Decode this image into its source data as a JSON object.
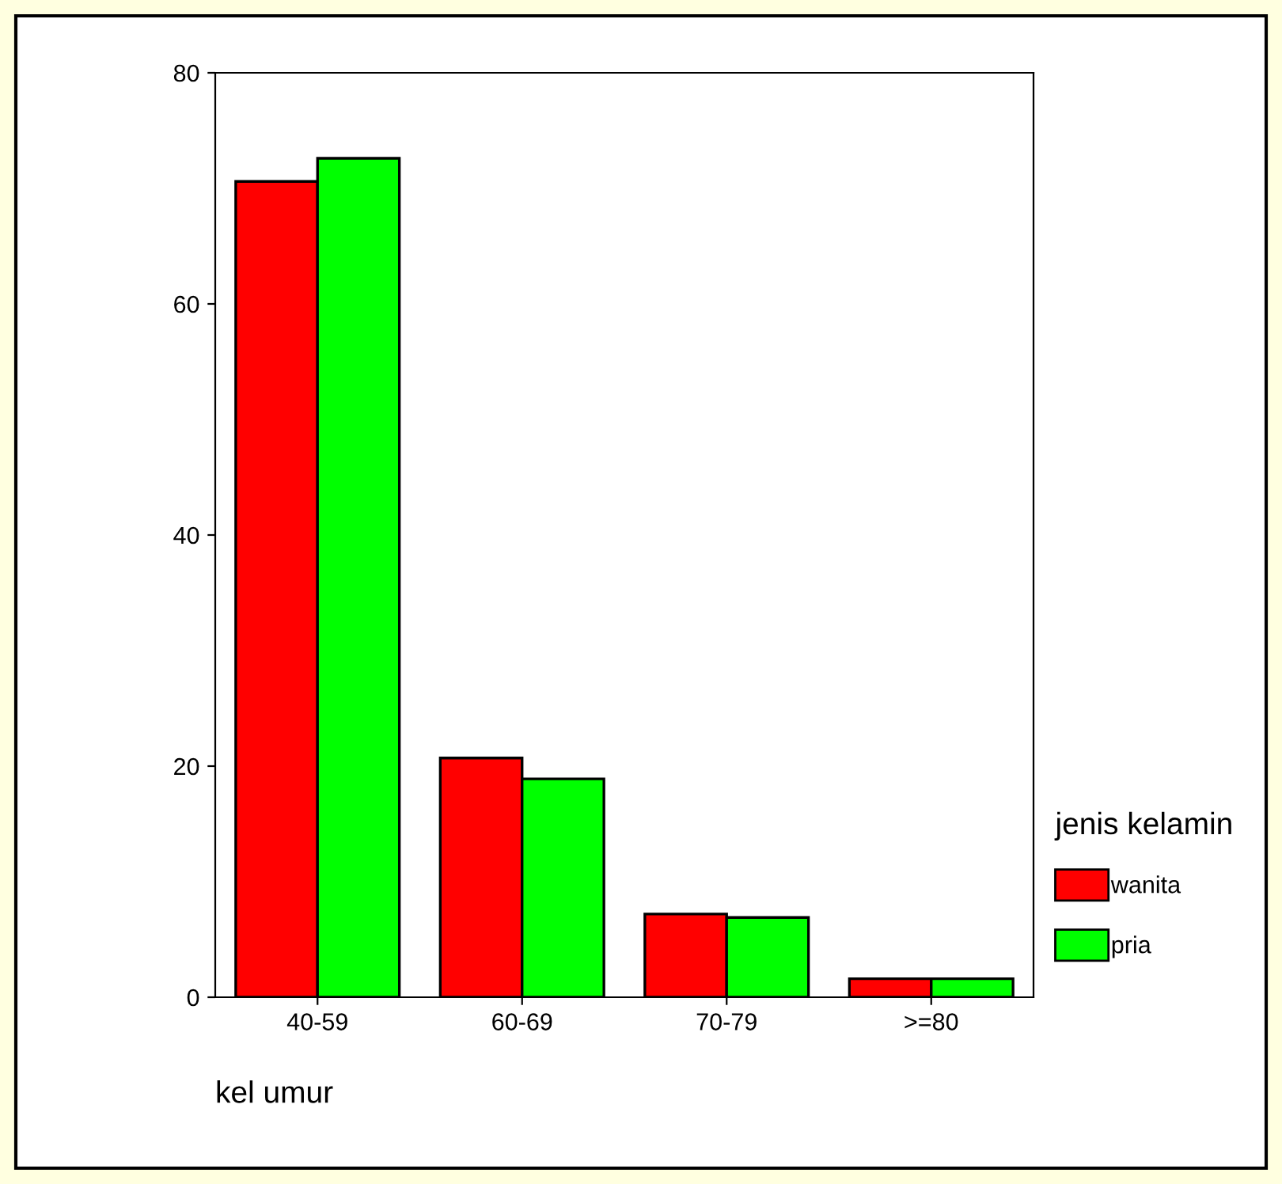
{
  "chart_data": {
    "type": "bar",
    "xlabel": "kel umur",
    "legend_title": "jenis kelamin",
    "categories": [
      "40-59",
      "60-69",
      "70-79",
      ">=80"
    ],
    "series": [
      {
        "name": "wanita",
        "color": "#ff0000",
        "values": [
          70.6,
          20.7,
          7.2,
          1.6
        ]
      },
      {
        "name": "pria",
        "color": "#00ff00",
        "values": [
          72.6,
          18.9,
          6.9,
          1.6
        ]
      }
    ],
    "ylim": [
      0,
      80
    ],
    "yticks": [
      0,
      20,
      40,
      60,
      80
    ],
    "grid": false,
    "legend": "right"
  }
}
